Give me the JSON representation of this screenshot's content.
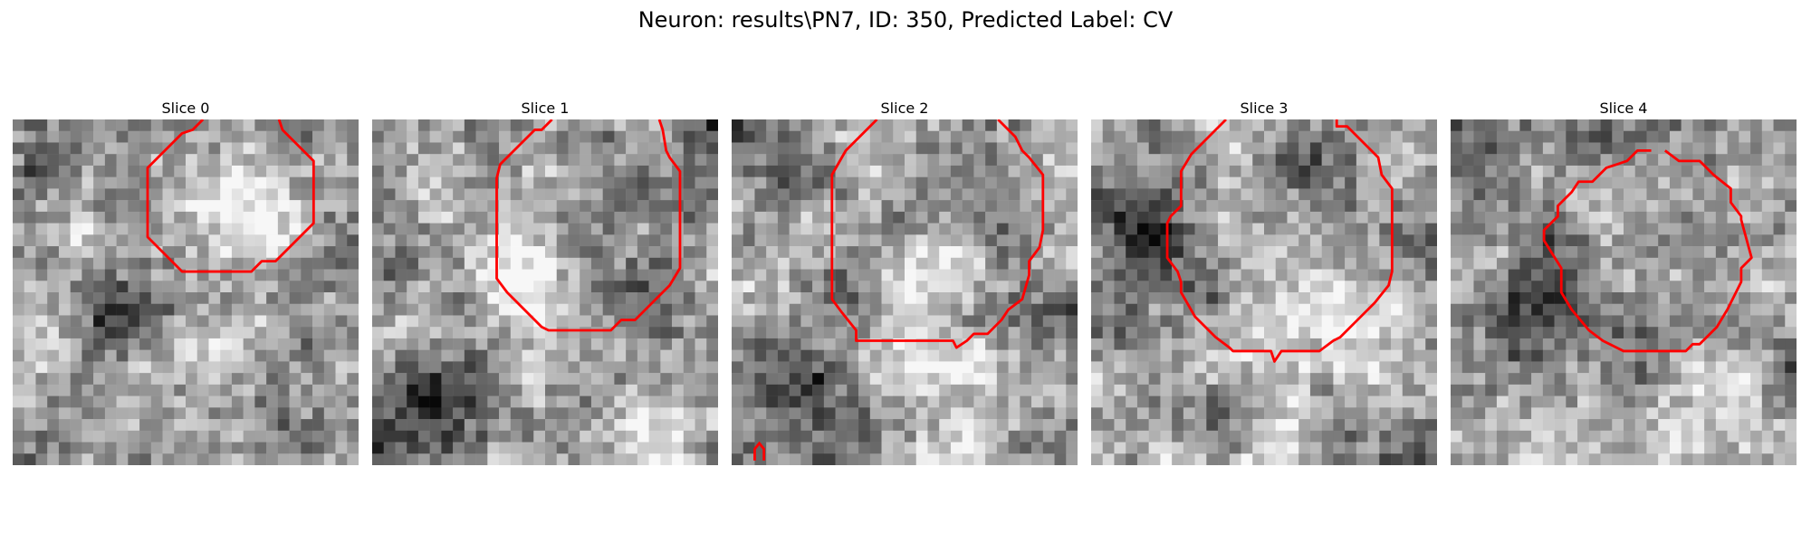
{
  "figure": {
    "title": "Neuron: results\\PN7, ID: 350, Predicted Label: CV"
  },
  "colors": {
    "contour": "#ff0000",
    "colormap": "gray"
  },
  "slices": [
    {
      "label": "Slice 0",
      "seed": 11,
      "darkSpot": [
        0.28,
        0.55
      ],
      "brightSpot": [
        0.65,
        0.25
      ],
      "contour": [
        [
          0.55,
          0.0
        ],
        [
          0.52,
          0.03
        ],
        [
          0.49,
          0.04
        ],
        [
          0.39,
          0.14
        ],
        [
          0.39,
          0.34
        ],
        [
          0.49,
          0.44
        ],
        [
          0.69,
          0.44
        ],
        [
          0.72,
          0.41
        ],
        [
          0.76,
          0.41
        ],
        [
          0.87,
          0.3
        ],
        [
          0.87,
          0.12
        ],
        [
          0.78,
          0.03
        ],
        [
          0.77,
          0.0
        ]
      ]
    },
    {
      "label": "Slice 1",
      "seed": 23,
      "darkSpot": [
        0.2,
        0.8
      ],
      "brightSpot": [
        0.4,
        0.45
      ],
      "contour": [
        [
          0.52,
          0.0
        ],
        [
          0.49,
          0.03
        ],
        [
          0.47,
          0.03
        ],
        [
          0.37,
          0.13
        ],
        [
          0.36,
          0.17
        ],
        [
          0.36,
          0.46
        ],
        [
          0.39,
          0.5
        ],
        [
          0.49,
          0.6
        ],
        [
          0.51,
          0.61
        ],
        [
          0.69,
          0.61
        ],
        [
          0.72,
          0.58
        ],
        [
          0.76,
          0.58
        ],
        [
          0.86,
          0.48
        ],
        [
          0.89,
          0.43
        ],
        [
          0.89,
          0.15
        ],
        [
          0.86,
          0.11
        ],
        [
          0.85,
          0.09
        ],
        [
          0.84,
          0.03
        ],
        [
          0.83,
          0.0
        ]
      ]
    },
    {
      "label": "Slice 2",
      "seed": 37,
      "darkSpot": [
        0.2,
        0.75
      ],
      "brightSpot": [
        0.55,
        0.6
      ],
      "contour": [
        [
          0.42,
          0.0
        ],
        [
          0.33,
          0.09
        ],
        [
          0.29,
          0.16
        ],
        [
          0.29,
          0.52
        ],
        [
          0.32,
          0.56
        ],
        [
          0.36,
          0.61
        ],
        [
          0.36,
          0.64
        ],
        [
          0.64,
          0.64
        ],
        [
          0.65,
          0.66
        ],
        [
          0.68,
          0.64
        ],
        [
          0.7,
          0.62
        ],
        [
          0.74,
          0.62
        ],
        [
          0.78,
          0.58
        ],
        [
          0.8,
          0.55
        ],
        [
          0.84,
          0.52
        ],
        [
          0.86,
          0.45
        ],
        [
          0.86,
          0.41
        ],
        [
          0.89,
          0.37
        ],
        [
          0.9,
          0.32
        ],
        [
          0.9,
          0.16
        ],
        [
          0.86,
          0.11
        ],
        [
          0.84,
          0.09
        ],
        [
          0.82,
          0.05
        ],
        [
          0.77,
          0.0
        ]
      ]
    },
    {
      "label": "Slice 3",
      "seed": 41,
      "darkSpot": [
        0.15,
        0.35
      ],
      "brightSpot": [
        0.7,
        0.6
      ],
      "contour": [
        [
          0.39,
          0.0
        ],
        [
          0.29,
          0.1
        ],
        [
          0.26,
          0.15
        ],
        [
          0.26,
          0.25
        ],
        [
          0.23,
          0.28
        ],
        [
          0.22,
          0.3
        ],
        [
          0.22,
          0.4
        ],
        [
          0.25,
          0.44
        ],
        [
          0.26,
          0.47
        ],
        [
          0.26,
          0.5
        ],
        [
          0.3,
          0.57
        ],
        [
          0.36,
          0.63
        ],
        [
          0.4,
          0.66
        ],
        [
          0.41,
          0.67
        ],
        [
          0.52,
          0.67
        ],
        [
          0.53,
          0.7
        ],
        [
          0.55,
          0.67
        ],
        [
          0.66,
          0.67
        ],
        [
          0.7,
          0.64
        ],
        [
          0.72,
          0.63
        ],
        [
          0.77,
          0.58
        ],
        [
          0.82,
          0.53
        ],
        [
          0.86,
          0.48
        ],
        [
          0.87,
          0.44
        ],
        [
          0.87,
          0.2
        ],
        [
          0.84,
          0.16
        ],
        [
          0.83,
          0.11
        ],
        [
          0.74,
          0.02
        ],
        [
          0.71,
          0.02
        ],
        [
          0.71,
          0.0
        ]
      ]
    },
    {
      "label": "Slice 4",
      "seed": 53,
      "darkSpot": [
        0.25,
        0.5
      ],
      "brightSpot": [
        0.8,
        0.85
      ],
      "contour": [
        [
          0.58,
          0.09
        ],
        [
          0.54,
          0.09
        ],
        [
          0.51,
          0.12
        ],
        [
          0.48,
          0.13
        ],
        [
          0.45,
          0.14
        ],
        [
          0.41,
          0.18
        ],
        [
          0.37,
          0.18
        ],
        [
          0.35,
          0.21
        ],
        [
          0.31,
          0.25
        ],
        [
          0.31,
          0.28
        ],
        [
          0.27,
          0.32
        ],
        [
          0.27,
          0.35
        ],
        [
          0.32,
          0.43
        ],
        [
          0.32,
          0.5
        ],
        [
          0.35,
          0.55
        ],
        [
          0.4,
          0.61
        ],
        [
          0.44,
          0.64
        ],
        [
          0.48,
          0.66
        ],
        [
          0.5,
          0.67
        ],
        [
          0.68,
          0.67
        ],
        [
          0.7,
          0.65
        ],
        [
          0.72,
          0.65
        ],
        [
          0.77,
          0.6
        ],
        [
          0.8,
          0.55
        ],
        [
          0.82,
          0.51
        ],
        [
          0.84,
          0.47
        ],
        [
          0.84,
          0.43
        ],
        [
          0.87,
          0.4
        ],
        [
          0.84,
          0.29
        ],
        [
          0.84,
          0.28
        ],
        [
          0.81,
          0.24
        ],
        [
          0.81,
          0.2
        ],
        [
          0.76,
          0.16
        ],
        [
          0.73,
          0.13
        ],
        [
          0.72,
          0.12
        ],
        [
          0.71,
          0.12
        ],
        [
          0.66,
          0.12
        ],
        [
          0.62,
          0.09
        ]
      ]
    }
  ]
}
